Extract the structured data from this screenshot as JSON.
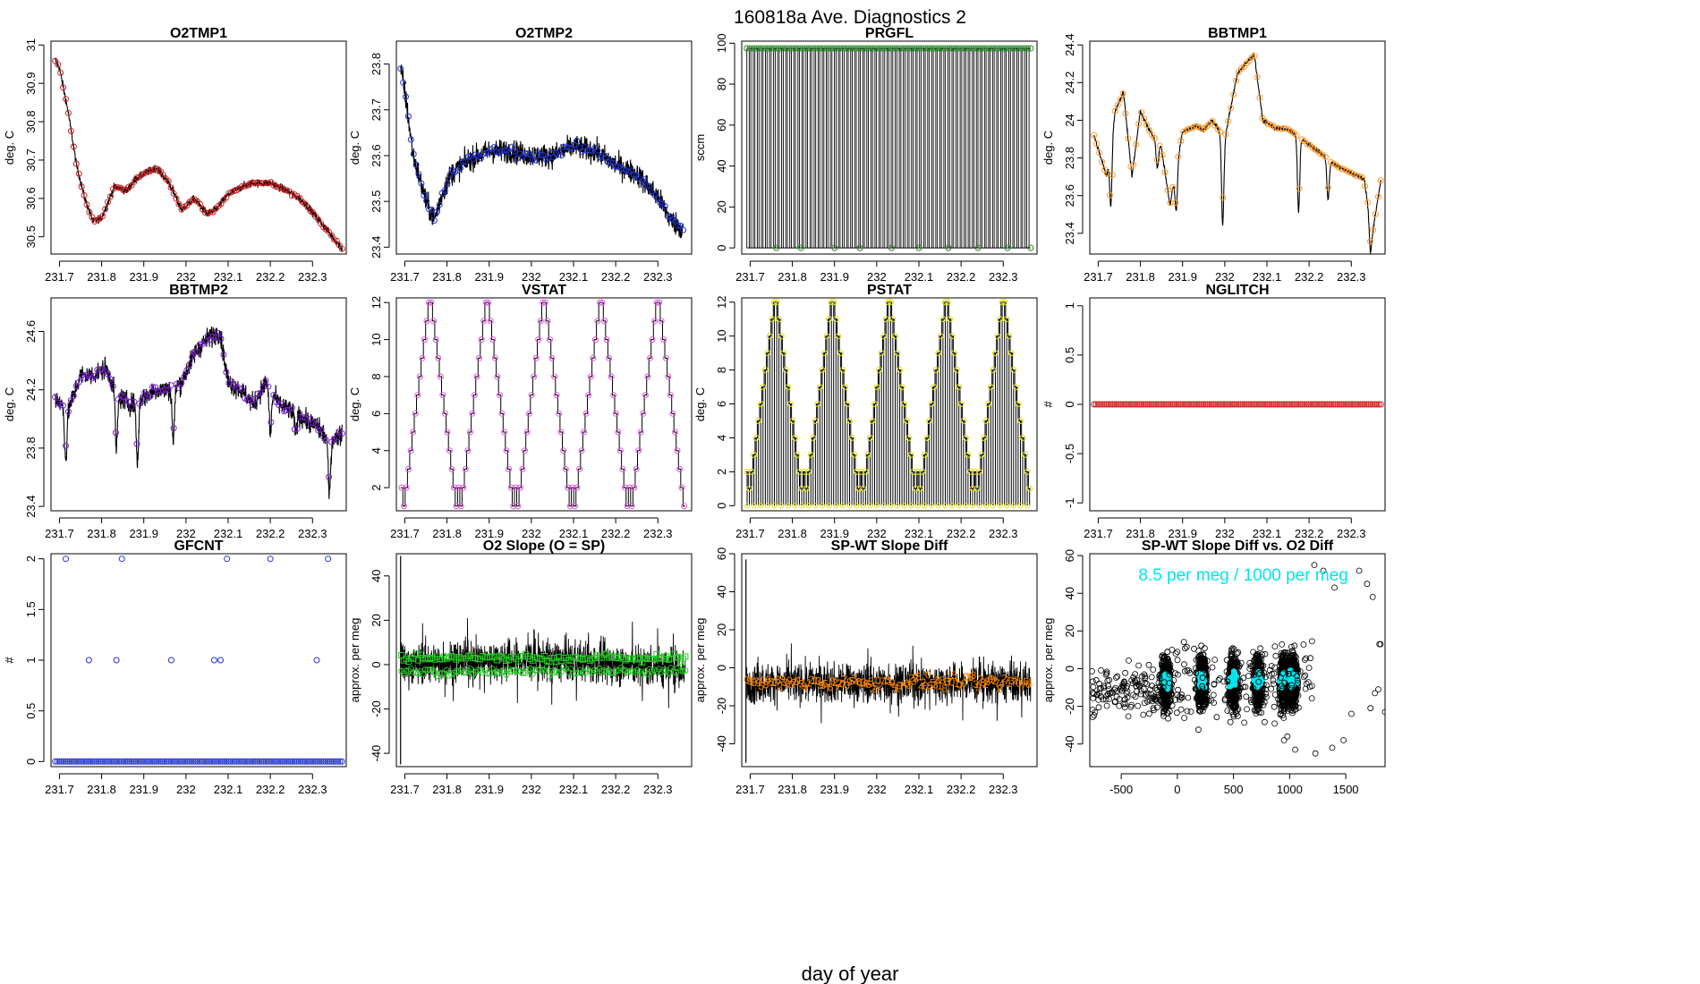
{
  "page": {
    "title": "160818a   Ave. Diagnostics 2",
    "xlabel_global": "day of year"
  },
  "chart_data": [
    {
      "title": "O2TMP1",
      "type": "line",
      "ylabel": "deg. C",
      "xlim": [
        231.68,
        232.38
      ],
      "ylim": [
        30.455,
        31.01
      ],
      "x_ticks": [
        231.7,
        231.8,
        231.9,
        232.0,
        232.1,
        232.2,
        232.3
      ],
      "y_ticks": [
        30.5,
        30.6,
        30.7,
        30.8,
        30.9,
        31.0
      ],
      "x": [
        231.69,
        231.7,
        231.72,
        231.74,
        231.76,
        231.78,
        231.8,
        231.83,
        231.86,
        231.88,
        231.91,
        231.93,
        231.96,
        231.99,
        232.02,
        232.05,
        232.07,
        232.1,
        232.13,
        232.16,
        232.2,
        232.24,
        232.28,
        232.31,
        232.34,
        232.37
      ],
      "values": [
        30.96,
        30.94,
        30.83,
        30.69,
        30.6,
        30.54,
        30.55,
        30.63,
        30.62,
        30.65,
        30.67,
        30.68,
        30.64,
        30.57,
        30.6,
        30.56,
        30.57,
        30.61,
        30.63,
        30.64,
        30.64,
        30.62,
        30.59,
        30.55,
        30.51,
        30.47
      ],
      "line_color": "#000000",
      "marker_color": "#cc2222",
      "marker": "circle",
      "noise": 0.01
    },
    {
      "title": "O2TMP2",
      "type": "line",
      "ylabel": "deg. C",
      "xlim": [
        231.68,
        232.38
      ],
      "ylim": [
        23.385,
        23.85
      ],
      "x_ticks": [
        231.7,
        231.8,
        231.9,
        232.0,
        232.1,
        232.2,
        232.3
      ],
      "y_ticks": [
        23.4,
        23.5,
        23.6,
        23.7,
        23.8
      ],
      "x": [
        231.69,
        231.7,
        231.72,
        231.75,
        231.77,
        231.79,
        231.81,
        231.85,
        231.9,
        231.95,
        232.0,
        232.05,
        232.1,
        232.15,
        232.2,
        232.25,
        232.3,
        232.33,
        232.36
      ],
      "values": [
        23.79,
        23.74,
        23.6,
        23.5,
        23.46,
        23.52,
        23.56,
        23.59,
        23.61,
        23.61,
        23.6,
        23.6,
        23.62,
        23.61,
        23.58,
        23.56,
        23.51,
        23.46,
        23.44
      ],
      "line_color": "#000000",
      "marker_color": "#2233cc",
      "marker": "circle",
      "noise": 0.025
    },
    {
      "title": "PRGFL",
      "type": "line",
      "ylabel": "sccm",
      "xlim": [
        231.68,
        232.38
      ],
      "ylim": [
        -3,
        101
      ],
      "x_ticks": [
        231.7,
        231.8,
        231.9,
        232.0,
        232.1,
        232.2,
        232.3
      ],
      "y_ticks": [
        0,
        20,
        40,
        60,
        80,
        100
      ],
      "high": 97.5,
      "low": 0,
      "cycles": 70,
      "line_color": "#000000",
      "marker_color": "#228822",
      "marker": "circle"
    },
    {
      "title": "BBTMP1",
      "type": "line",
      "ylabel": "deg. C",
      "xlim": [
        231.68,
        232.38
      ],
      "ylim": [
        23.29,
        24.42
      ],
      "x_ticks": [
        231.7,
        231.8,
        231.9,
        232.0,
        232.1,
        232.2,
        232.3
      ],
      "y_ticks": [
        23.4,
        23.6,
        23.8,
        24.0,
        24.2,
        24.4
      ],
      "x": [
        231.69,
        231.72,
        231.74,
        231.76,
        231.78,
        231.8,
        231.82,
        231.85,
        231.87,
        231.9,
        231.93,
        231.95,
        231.97,
        232.0,
        232.03,
        232.05,
        232.07,
        232.09,
        232.12,
        232.15,
        232.17,
        232.2,
        232.23,
        232.25,
        232.28,
        232.31,
        232.33,
        232.35,
        232.37
      ],
      "values": [
        23.92,
        23.7,
        24.05,
        24.15,
        23.7,
        24.05,
        23.95,
        23.85,
        23.55,
        23.94,
        23.97,
        23.95,
        24.0,
        23.9,
        24.25,
        24.3,
        24.35,
        24.0,
        23.96,
        23.95,
        23.92,
        23.87,
        23.82,
        23.78,
        23.74,
        23.71,
        23.69,
        23.4,
        23.68
      ],
      "dips": [
        [
          231.73,
          23.55
        ],
        [
          231.84,
          23.75
        ],
        [
          231.885,
          23.52
        ],
        [
          231.995,
          23.45
        ],
        [
          232.175,
          23.52
        ],
        [
          232.245,
          23.58
        ],
        [
          232.345,
          23.31
        ]
      ],
      "line_color": "#000000",
      "marker_color": "#ff9922",
      "marker": "circle",
      "noise": 0.012
    },
    {
      "title": "BBTMP2",
      "type": "line",
      "ylabel": "deg. C",
      "xlim": [
        231.68,
        232.38
      ],
      "ylim": [
        23.37,
        24.83
      ],
      "x_ticks": [
        231.7,
        231.8,
        231.9,
        232.0,
        232.1,
        232.2,
        232.3
      ],
      "y_ticks": [
        23.4,
        23.8,
        24.2,
        24.6
      ],
      "x": [
        231.69,
        231.72,
        231.75,
        231.78,
        231.81,
        231.84,
        231.87,
        231.9,
        231.93,
        231.96,
        231.99,
        232.02,
        232.05,
        232.08,
        232.1,
        232.13,
        232.16,
        232.19,
        232.22,
        232.25,
        232.28,
        232.31,
        232.34,
        232.37
      ],
      "values": [
        24.15,
        24.05,
        24.3,
        24.3,
        24.35,
        24.15,
        24.1,
        24.15,
        24.2,
        24.2,
        24.25,
        24.45,
        24.55,
        24.6,
        24.25,
        24.2,
        24.1,
        24.25,
        24.1,
        24.05,
        24.0,
        23.95,
        23.85,
        23.9
      ],
      "dips": [
        [
          231.715,
          23.72
        ],
        [
          231.835,
          23.8
        ],
        [
          231.885,
          23.7
        ],
        [
          231.97,
          23.85
        ],
        [
          232.2,
          23.9
        ],
        [
          232.26,
          23.9
        ],
        [
          232.34,
          23.48
        ]
      ],
      "line_color": "#000000",
      "marker_color": "#7722cc",
      "marker": "circle",
      "noise": 0.07
    },
    {
      "title": "VSTAT",
      "type": "line",
      "ylabel": "deg. C",
      "xlim": [
        231.68,
        232.38
      ],
      "ylim": [
        0.75,
        12.25
      ],
      "x_ticks": [
        231.7,
        231.8,
        231.9,
        232.0,
        232.1,
        232.2,
        232.3
      ],
      "y_ticks": [
        2,
        4,
        6,
        8,
        10,
        12
      ],
      "pattern": [
        2,
        1,
        2,
        3,
        4,
        5,
        6,
        7,
        8,
        9,
        10,
        11,
        12,
        12,
        11,
        10,
        9,
        8,
        7,
        6,
        5,
        4,
        3,
        2,
        1
      ],
      "periods": 5,
      "start": 231.69,
      "end": 232.365,
      "line_color": "#000000",
      "marker_color": "#dd55dd",
      "marker": "circle"
    },
    {
      "title": "PSTAT",
      "type": "line",
      "ylabel": "deg. C",
      "xlim": [
        231.68,
        232.38
      ],
      "ylim": [
        -0.3,
        12.25
      ],
      "x_ticks": [
        231.7,
        231.8,
        231.9,
        232.0,
        232.1,
        232.2,
        232.3
      ],
      "y_ticks": [
        0,
        2,
        4,
        6,
        8,
        10,
        12
      ],
      "pattern": [
        2,
        1,
        2,
        3,
        4,
        5,
        6,
        7,
        8,
        9,
        10,
        11,
        12,
        12,
        11,
        10,
        9,
        8,
        7,
        6,
        5,
        4,
        3,
        2,
        1
      ],
      "periods": 5,
      "start": 231.69,
      "end": 232.365,
      "line_color": "#000000",
      "marker_color": "#dddd00",
      "marker": "circle"
    },
    {
      "title": "NGLITCH",
      "type": "scatter",
      "ylabel": "#",
      "xlim": [
        231.68,
        232.38
      ],
      "ylim": [
        -1.08,
        1.08
      ],
      "x_ticks": [
        231.7,
        231.8,
        231.9,
        232.0,
        232.1,
        232.2,
        232.3
      ],
      "y_ticks": [
        -1.0,
        -0.5,
        0.0,
        0.5,
        1.0
      ],
      "constant": 0,
      "count": 140,
      "start": 231.69,
      "end": 232.37,
      "marker_color": "#cc2222",
      "marker": "circle"
    },
    {
      "title": "GFCNT",
      "type": "scatter",
      "ylabel": "#",
      "xlim": [
        231.68,
        232.38
      ],
      "ylim": [
        -0.05,
        2.05
      ],
      "x_ticks": [
        231.7,
        231.8,
        231.9,
        232.0,
        232.1,
        232.2,
        232.3
      ],
      "y_ticks": [
        0.0,
        0.5,
        1.0,
        1.5,
        2.0
      ],
      "constant": 0,
      "count": 140,
      "start": 231.69,
      "end": 232.37,
      "points": [
        [
          231.715,
          2
        ],
        [
          231.77,
          1
        ],
        [
          231.835,
          1
        ],
        [
          231.848,
          2
        ],
        [
          231.965,
          1
        ],
        [
          232.067,
          1
        ],
        [
          232.082,
          1
        ],
        [
          232.097,
          2
        ],
        [
          232.2,
          2
        ],
        [
          232.31,
          1
        ],
        [
          232.337,
          2
        ]
      ],
      "marker_color": "#2233cc",
      "marker": "circle"
    },
    {
      "title": "O2 Slope (O = SP)",
      "type": "line",
      "ylabel": "approx. per meg",
      "xlim": [
        231.68,
        232.38
      ],
      "ylim": [
        -46,
        50
      ],
      "x_ticks": [
        231.7,
        231.8,
        231.9,
        232.0,
        232.1,
        232.2,
        232.3
      ],
      "y_ticks": [
        -40,
        -20,
        0,
        20,
        40
      ],
      "mean": 0,
      "spread": 9,
      "spike_low": -45,
      "spike_high": 49,
      "line_color": "#000000",
      "marker_color": "#22cc22",
      "marker": "circle+square"
    },
    {
      "title": "SP-WT Slope Diff",
      "type": "line",
      "ylabel": "approx. per meg",
      "xlim": [
        231.68,
        232.38
      ],
      "ylim": [
        -52,
        60
      ],
      "x_ticks": [
        231.7,
        231.8,
        231.9,
        232.0,
        232.1,
        232.2,
        232.3
      ],
      "y_ticks": [
        -40,
        -20,
        0,
        20,
        40,
        60
      ],
      "mean": -8,
      "spread": 10,
      "spike_low": -50,
      "spike_high": 57,
      "line_color": "#000000",
      "marker_color": "#ff8800",
      "marker": "digits"
    },
    {
      "title": "SP-WT Slope Diff vs. O2 Diff",
      "type": "scatter",
      "ylabel": "approx. per meg",
      "xlim": [
        -780,
        1850
      ],
      "ylim": [
        -52,
        61
      ],
      "x_ticks": [
        -500,
        0,
        500,
        1000,
        1500
      ],
      "y_ticks": [
        -40,
        -20,
        0,
        20,
        40,
        60
      ],
      "annotation": "8.5 per meg / 1000 per meg",
      "clusters": [
        -100,
        220,
        500,
        720,
        950,
        1030
      ],
      "marker_color": "#000000",
      "highlight_color": "#00e5ee",
      "marker": "circle"
    }
  ]
}
